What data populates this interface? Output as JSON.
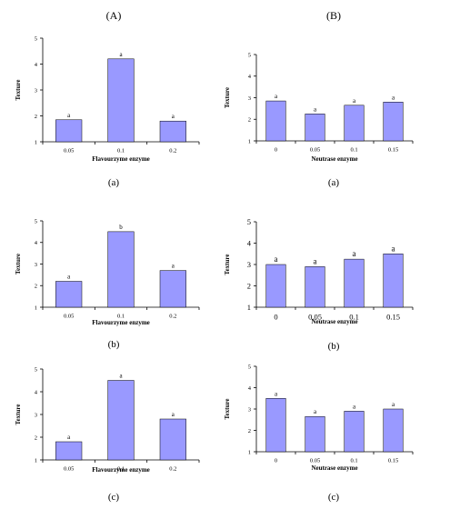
{
  "headers": {
    "left": "(A)",
    "right": "(B)"
  },
  "chart_data": [
    {
      "type": "bar",
      "ylabel": "Texture",
      "xlabel": "Flavourzyme enzyme",
      "ylim": [
        1,
        5
      ],
      "yticks": [
        "1",
        "2",
        "3",
        "4",
        "5"
      ],
      "categories": [
        "0.05",
        "0.1",
        "0.2"
      ],
      "values": [
        1.85,
        4.2,
        1.8
      ],
      "data_labels": [
        "a",
        "a",
        "a"
      ],
      "sublabel": "(a)",
      "color": "#9999ff"
    },
    {
      "type": "bar",
      "ylabel": "Texture",
      "xlabel": "Neutrase enzyme",
      "ylim": [
        1,
        5
      ],
      "yticks": [
        "1",
        "2",
        "3",
        "4",
        "5"
      ],
      "categories": [
        "0",
        "0.05",
        "0.1",
        "0.15"
      ],
      "values": [
        2.85,
        2.25,
        2.65,
        2.8
      ],
      "data_labels": [
        "a",
        "a",
        "a",
        "a"
      ],
      "sublabel": "(a)",
      "color": "#9999ff"
    },
    {
      "type": "bar",
      "ylabel": "Texture",
      "xlabel": "Flavourzyme enzyme",
      "ylim": [
        1,
        5
      ],
      "yticks": [
        "1",
        "2",
        "3",
        "4",
        "5"
      ],
      "categories": [
        "0.05",
        "0.1",
        "0.2"
      ],
      "values": [
        2.2,
        4.5,
        2.7
      ],
      "data_labels": [
        "a",
        "b",
        "a"
      ],
      "sublabel": "(b)",
      "color": "#9999ff"
    },
    {
      "type": "bar",
      "ylabel": "Texture",
      "xlabel": "Neutrase enzyme",
      "ylim": [
        1,
        5
      ],
      "yticks": [
        "1",
        "2",
        "3",
        "4",
        "5"
      ],
      "categories": [
        "0",
        "0.05",
        "0.1",
        "0.15"
      ],
      "values": [
        3.0,
        2.9,
        3.25,
        3.5
      ],
      "data_labels": [
        "a",
        "a",
        "a",
        "a"
      ],
      "sublabel": "(b)",
      "color": "#9999ff"
    },
    {
      "type": "bar",
      "ylabel": "Texture",
      "xlabel": "Flavourzyme enzyme",
      "ylim": [
        1,
        5
      ],
      "yticks": [
        "1",
        "2",
        "3",
        "4",
        "5"
      ],
      "categories": [
        "0.05",
        "0.1",
        "0.2"
      ],
      "values": [
        1.8,
        4.5,
        2.8
      ],
      "data_labels": [
        "a",
        "a",
        "a"
      ],
      "sublabel": "(c)",
      "color": "#9999ff"
    },
    {
      "type": "bar",
      "ylabel": "Texture",
      "xlabel": "Neutrase enzyme",
      "ylim": [
        1,
        5
      ],
      "yticks": [
        "1",
        "2",
        "3",
        "4",
        "5"
      ],
      "categories": [
        "0",
        "0.05",
        "0.1",
        "0.15"
      ],
      "values": [
        3.5,
        2.65,
        2.9,
        3.0
      ],
      "data_labels": [
        "a",
        "a",
        "a",
        "a"
      ],
      "sublabel": "(c)",
      "color": "#9999ff"
    }
  ]
}
